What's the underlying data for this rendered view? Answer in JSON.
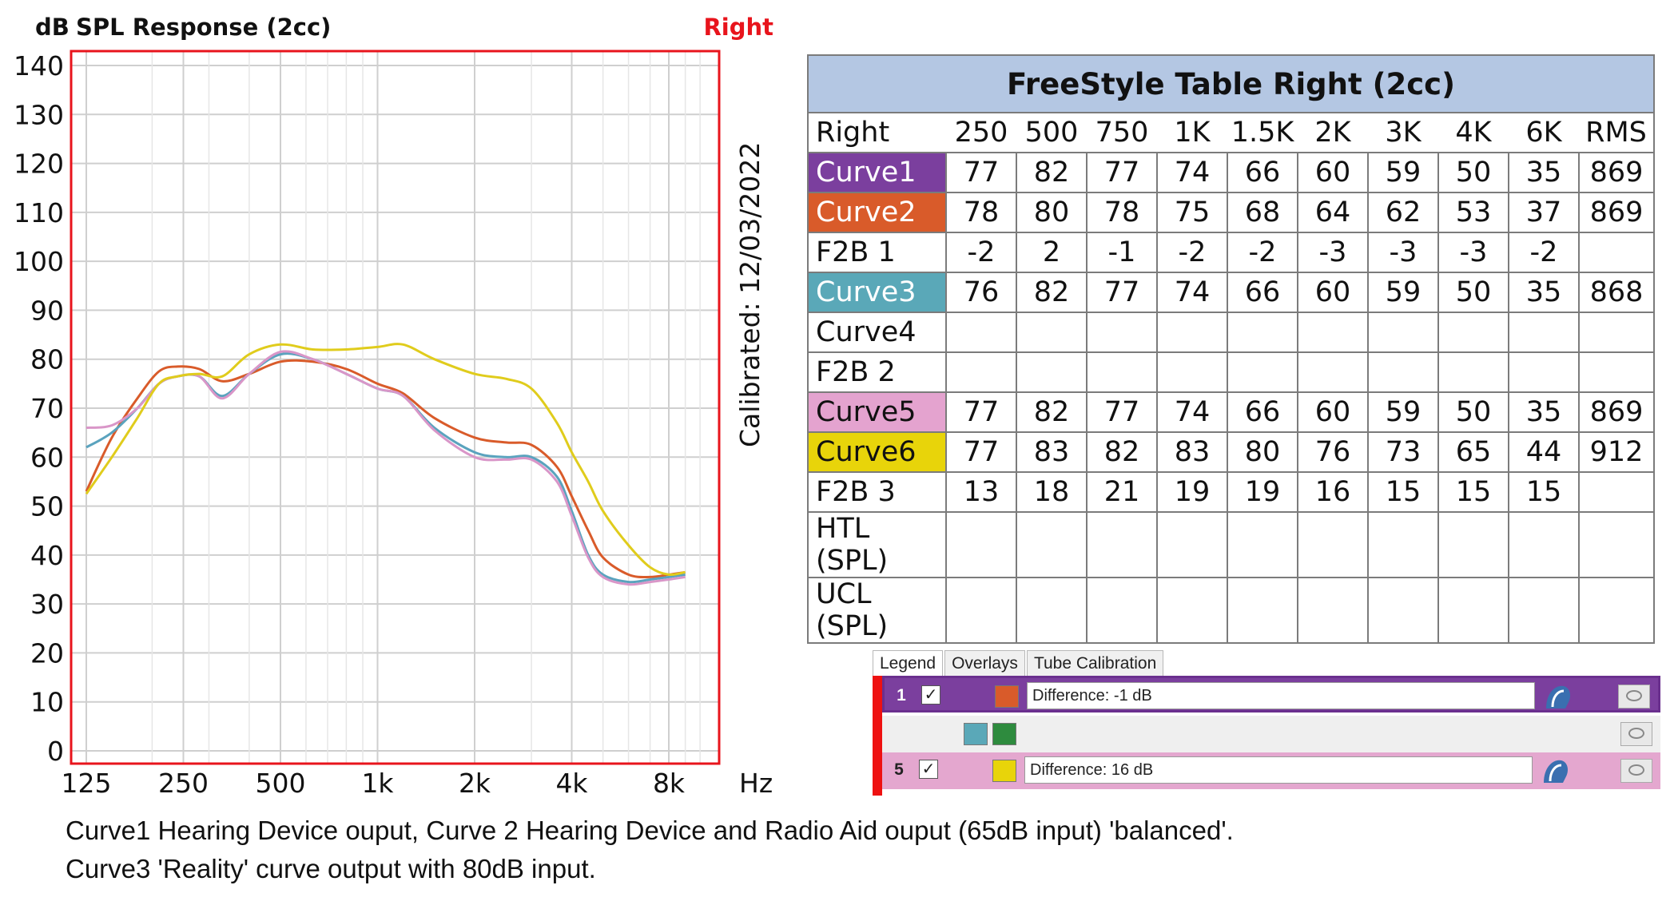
{
  "chart_data": {
    "type": "line",
    "title": "SPL Response (2cc)",
    "ylabel": "dB",
    "xlabel": "Hz",
    "side_label": "Right",
    "calibrated_label": "Calibrated:  12/03/2022",
    "x_scale": "log",
    "xlim": [
      125,
      10000
    ],
    "ylim": [
      0,
      140
    ],
    "x_ticks": [
      {
        "value": 125,
        "label": "125"
      },
      {
        "value": 250,
        "label": "250"
      },
      {
        "value": 500,
        "label": "500"
      },
      {
        "value": 1000,
        "label": "1k"
      },
      {
        "value": 2000,
        "label": "2k"
      },
      {
        "value": 4000,
        "label": "4k"
      },
      {
        "value": 8000,
        "label": "8k"
      }
    ],
    "y_ticks": [
      0,
      10,
      20,
      30,
      40,
      50,
      60,
      70,
      80,
      90,
      100,
      110,
      120,
      130,
      140
    ],
    "grid": true,
    "series": [
      {
        "color": "#d95b2a",
        "x": [
          125,
          150,
          180,
          210,
          240,
          280,
          330,
          400,
          500,
          630,
          800,
          1000,
          1200,
          1500,
          2000,
          2500,
          3000,
          3600,
          4000,
          4500,
          5000,
          6000,
          7000,
          8000,
          9000
        ],
        "y": [
          53,
          64,
          72,
          77.5,
          78.5,
          78,
          75.5,
          77,
          79.5,
          79.5,
          78,
          75,
          73,
          68,
          64,
          63,
          62.5,
          58,
          52,
          45,
          39.5,
          36,
          35.5,
          36,
          36.5
        ]
      },
      {
        "color": "#5aa3be",
        "x": [
          125,
          150,
          180,
          210,
          240,
          280,
          330,
          400,
          500,
          630,
          800,
          1000,
          1200,
          1500,
          2000,
          2500,
          3000,
          3600,
          4000,
          4500,
          5000,
          6000,
          7000,
          8000,
          9000
        ],
        "y": [
          62,
          65,
          70,
          75,
          76.5,
          76.5,
          72.5,
          77,
          81,
          80,
          77,
          74,
          72.5,
          66,
          61,
          60,
          60,
          56,
          49,
          40,
          36,
          34.5,
          35,
          35.5,
          36
        ]
      },
      {
        "color": "#d996c8",
        "x": [
          125,
          150,
          180,
          210,
          240,
          280,
          330,
          400,
          500,
          630,
          800,
          1000,
          1200,
          1500,
          2000,
          2500,
          3000,
          3600,
          4000,
          4500,
          5000,
          6000,
          7000,
          8000,
          9000
        ],
        "y": [
          66,
          66.5,
          70,
          75,
          76.5,
          76.5,
          72,
          77,
          81.5,
          80,
          77,
          74,
          72.5,
          65.5,
          60,
          59.5,
          59.5,
          55,
          48,
          39.5,
          35.5,
          34,
          34.5,
          35,
          35.5
        ]
      },
      {
        "color": "#e0cc1c",
        "x": [
          125,
          150,
          180,
          210,
          240,
          280,
          330,
          400,
          500,
          630,
          800,
          1000,
          1200,
          1500,
          2000,
          2500,
          3000,
          3600,
          4000,
          4500,
          5000,
          6000,
          7000,
          8000,
          9000
        ],
        "y": [
          52.5,
          60,
          68,
          75,
          76.5,
          77,
          76.5,
          81,
          83,
          82,
          82,
          82.5,
          83,
          80,
          77,
          76,
          74,
          67,
          61,
          55,
          49,
          42,
          37.5,
          36,
          36.5
        ]
      }
    ]
  },
  "table": {
    "title": "FreeStyle Table Right (2cc)",
    "corner": "Right",
    "headers": [
      "250",
      "500",
      "750",
      "1K",
      "1.5K",
      "2K",
      "3K",
      "4K",
      "6K",
      "RMS"
    ],
    "rows": [
      {
        "label": "Curve1",
        "bg": "#7b3f9e",
        "fg": "#ffffff",
        "cells": [
          "77",
          "82",
          "77",
          "74",
          "66",
          "60",
          "59",
          "50",
          "35",
          "869"
        ]
      },
      {
        "label": "Curve2",
        "bg": "#d95b2a",
        "fg": "#ffffff",
        "cells": [
          "78",
          "80",
          "78",
          "75",
          "68",
          "64",
          "62",
          "53",
          "37",
          "869"
        ]
      },
      {
        "label": "F2B 1",
        "bg": "",
        "fg": "",
        "cells": [
          "-2",
          "2",
          "-1",
          "-2",
          "-2",
          "-3",
          "-3",
          "-3",
          "-2",
          ""
        ]
      },
      {
        "label": "Curve3",
        "bg": "#5aa8b8",
        "fg": "#ffffff",
        "cells": [
          "76",
          "82",
          "77",
          "74",
          "66",
          "60",
          "59",
          "50",
          "35",
          "868"
        ]
      },
      {
        "label": "Curve4",
        "bg": "",
        "fg": "",
        "cells": [
          "",
          "",
          "",
          "",
          "",
          "",
          "",
          "",
          "",
          ""
        ]
      },
      {
        "label": "F2B 2",
        "bg": "",
        "fg": "",
        "cells": [
          "",
          "",
          "",
          "",
          "",
          "",
          "",
          "",
          "",
          ""
        ]
      },
      {
        "label": "Curve5",
        "bg": "#e4a3cf",
        "fg": "#111111",
        "cells": [
          "77",
          "82",
          "77",
          "74",
          "66",
          "60",
          "59",
          "50",
          "35",
          "869"
        ]
      },
      {
        "label": "Curve6",
        "bg": "#e8d40a",
        "fg": "#111111",
        "cells": [
          "77",
          "83",
          "82",
          "83",
          "80",
          "76",
          "73",
          "65",
          "44",
          "912"
        ]
      },
      {
        "label": "F2B 3",
        "bg": "",
        "fg": "",
        "cells": [
          "13",
          "18",
          "21",
          "19",
          "19",
          "16",
          "15",
          "15",
          "15",
          ""
        ]
      },
      {
        "label": "HTL (SPL)",
        "bg": "",
        "fg": "",
        "cells": [
          "",
          "",
          "",
          "",
          "",
          "",
          "",
          "",
          "",
          ""
        ]
      },
      {
        "label": "UCL (SPL)",
        "bg": "",
        "fg": "",
        "cells": [
          "",
          "",
          "",
          "",
          "",
          "",
          "",
          "",
          "",
          ""
        ]
      }
    ]
  },
  "legend": {
    "tabs": [
      "Legend",
      "Overlays",
      "Tube Calibration"
    ],
    "rows": [
      {
        "num": "1",
        "check": "✓",
        "swatches": [
          "#d95b2a"
        ],
        "text": "Difference: -1 dB"
      },
      {
        "num": "",
        "check": "",
        "swatches": [
          "#5aa8b8",
          "#2e8b3e"
        ],
        "text": ""
      },
      {
        "num": "5",
        "check": "✓",
        "swatches": [
          "#e8d40a"
        ],
        "text": "Difference: 16 dB"
      }
    ]
  },
  "caption": {
    "line1": "Curve1 Hearing Device ouput, Curve 2 Hearing Device and Radio Aid ouput (65dB input) 'balanced'.",
    "line2": "Curve3 'Reality' curve output with 80dB input."
  }
}
